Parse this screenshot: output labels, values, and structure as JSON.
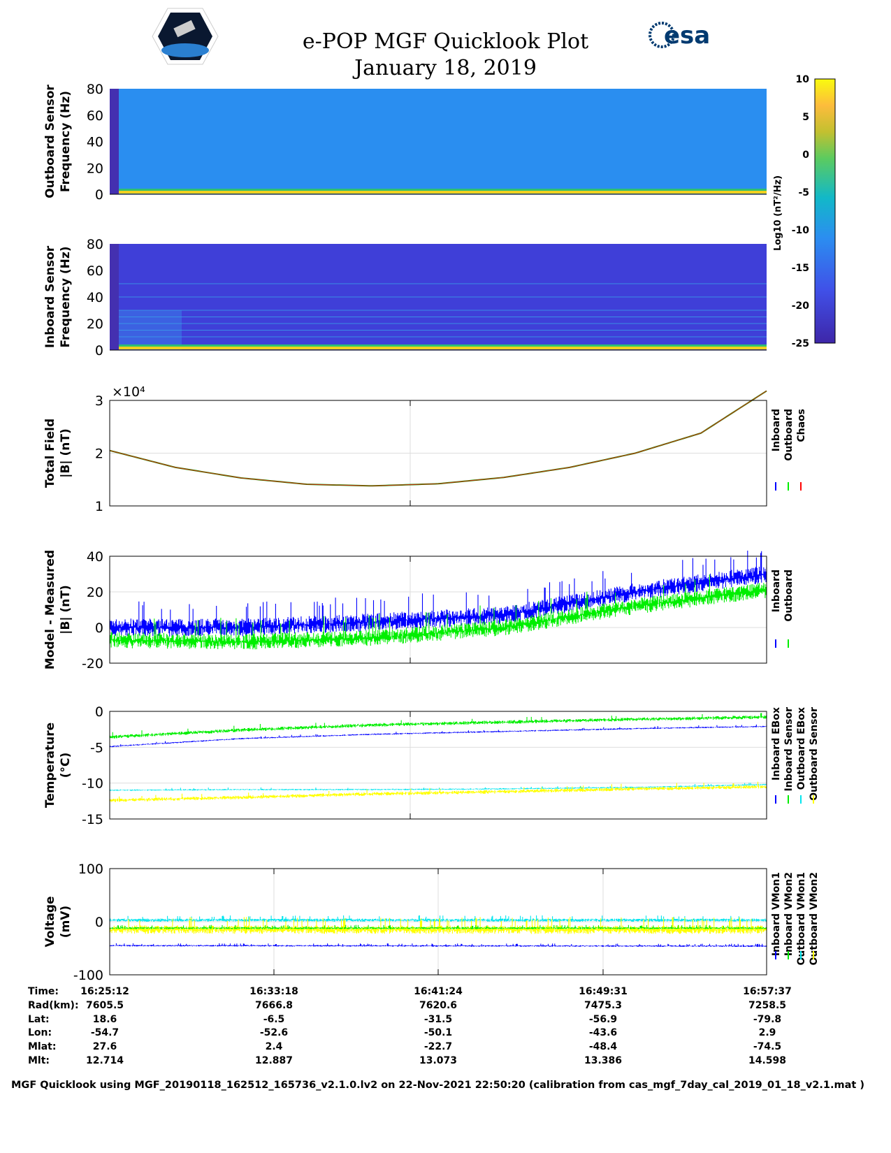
{
  "header": {
    "title": "e-POP MGF Quicklook Plot",
    "date": "January 18, 2019",
    "left_logo": "CASSIOPE",
    "right_logo": "esa"
  },
  "chart_data": [
    {
      "type": "heatmap",
      "name": "outboard",
      "ylabel": [
        "Outboard Sensor",
        "Frequency (Hz)"
      ],
      "ylim": [
        0,
        80
      ],
      "yticks": [
        0,
        20,
        40,
        60,
        80
      ],
      "lines_hz": []
    },
    {
      "type": "heatmap",
      "name": "inboard",
      "ylabel": [
        "Inboard Sensor",
        "Frequency (Hz)"
      ],
      "ylim": [
        0,
        80
      ],
      "yticks": [
        0,
        20,
        40,
        60,
        80
      ],
      "lines_hz": [
        10,
        15,
        20,
        25,
        30,
        40,
        50
      ]
    },
    {
      "type": "colorbar",
      "label": "Log10 (nT²/Hz)",
      "range": [
        -25,
        10
      ],
      "ticks": [
        "10",
        "5",
        "0",
        "-5",
        "-10",
        "-15",
        "-20",
        "-25"
      ]
    },
    {
      "type": "line",
      "name": "total",
      "ylabel": [
        "Total Field",
        "|B| (nT)"
      ],
      "ylim": [
        1,
        3
      ],
      "yticks": [
        "1",
        "2",
        "3"
      ],
      "exponent": "×10⁴",
      "legend": [
        "Inboard",
        "Outboard",
        "Chaos"
      ],
      "colors": [
        "#0000ff",
        "#00ee00",
        "#ff0000"
      ],
      "x": [
        0,
        0.1,
        0.2,
        0.3,
        0.4,
        0.5,
        0.6,
        0.7,
        0.8,
        0.9,
        1.0
      ],
      "values": [
        20500,
        17300,
        15300,
        14100,
        13800,
        14200,
        15400,
        17300,
        20000,
        23800,
        31800
      ]
    },
    {
      "type": "line",
      "name": "diff",
      "ylabel": [
        "Model - Measured",
        "|B| (nT)"
      ],
      "ylim": [
        -20,
        40
      ],
      "yticks": [
        "-20",
        "0",
        "20",
        "40"
      ],
      "legend": [
        "Inboard",
        "Outboard"
      ],
      "colors": [
        "#0000ff",
        "#00ee00"
      ],
      "x": [
        0,
        0.2,
        0.4,
        0.6,
        0.8,
        1.0
      ],
      "series": [
        {
          "name": "Inboard",
          "values": [
            0,
            0,
            3,
            7,
            20,
            30
          ]
        },
        {
          "name": "Outboard",
          "values": [
            -7,
            -8,
            -6,
            0,
            12,
            21
          ]
        }
      ]
    },
    {
      "type": "line",
      "name": "temp",
      "ylabel": [
        "Temperature",
        "(°C)"
      ],
      "ylim": [
        -15,
        0
      ],
      "yticks": [
        "-15",
        "-10",
        "-5",
        "0"
      ],
      "legend": [
        "Inboard EBox",
        "Inboard Sensor",
        "Outboard EBox",
        "Outboard Sensor"
      ],
      "colors": [
        "#0000ff",
        "#00ee00",
        "#00e5ee",
        "#ffff00"
      ],
      "x": [
        0,
        0.2,
        0.4,
        0.6,
        0.8,
        1.0
      ],
      "series": [
        {
          "name": "Inboard EBox",
          "values": [
            -4.9,
            -3.8,
            -3.2,
            -2.8,
            -2.4,
            -2.1
          ]
        },
        {
          "name": "Inboard Sensor",
          "values": [
            -3.6,
            -2.6,
            -1.9,
            -1.5,
            -1.1,
            -0.8
          ]
        },
        {
          "name": "Outboard EBox",
          "values": [
            -11,
            -10.9,
            -10.9,
            -10.8,
            -10.6,
            -10.2
          ]
        },
        {
          "name": "Outboard Sensor",
          "values": [
            -12.4,
            -12,
            -11.5,
            -11.2,
            -10.8,
            -10.5
          ]
        }
      ]
    },
    {
      "type": "line",
      "name": "volt",
      "ylabel": [
        "Voltage",
        "(mV)"
      ],
      "ylim": [
        -100,
        100
      ],
      "yticks": [
        "-100",
        "0",
        "100"
      ],
      "legend": [
        "Inboard VMon1",
        "Inboard VMon2",
        "Outboard VMon1",
        "Outboard VMon2"
      ],
      "colors": [
        "#0000ff",
        "#00ee00",
        "#00e5ee",
        "#ffff00"
      ],
      "series": [
        {
          "name": "Inboard VMon1",
          "values": [
            -45,
            -46
          ]
        },
        {
          "name": "Inboard VMon2",
          "values": [
            -12,
            -12
          ]
        },
        {
          "name": "Outboard VMon1",
          "values": [
            3,
            3
          ]
        },
        {
          "name": "Outboard VMon2",
          "values": [
            -15,
            -15
          ]
        }
      ]
    }
  ],
  "footer": {
    "labels": [
      "Time:",
      "Rad(km):",
      "Lat:",
      "Lon:",
      "Mlat:",
      "Mlt:"
    ],
    "columns": [
      [
        "16:25:12",
        "7605.5",
        "18.6",
        "-54.7",
        "27.6",
        "12.714"
      ],
      [
        "16:33:18",
        "7666.8",
        "-6.5",
        "-52.6",
        "2.4",
        "12.887"
      ],
      [
        "16:41:24",
        "7620.6",
        "-31.5",
        "-50.1",
        "-22.7",
        "13.073"
      ],
      [
        "16:49:31",
        "7475.3",
        "-56.9",
        "-43.6",
        "-48.4",
        "13.386"
      ],
      [
        "16:57:37",
        "7258.5",
        "-79.8",
        "2.9",
        "-74.5",
        "14.598"
      ]
    ],
    "note": "MGF Quicklook using MGF_20190118_162512_165736_v2.1.0.lv2 on 22-Nov-2021 22:50:20 (calibration from cas_mgf_7day_cal_2019_01_18_v2.1.mat )"
  }
}
